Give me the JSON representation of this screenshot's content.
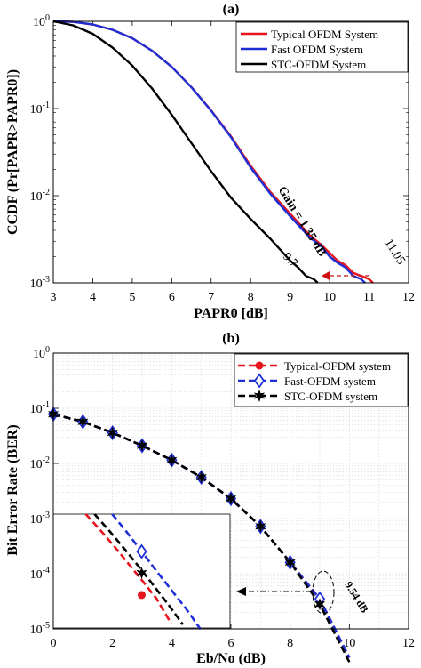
{
  "chart_data": [
    {
      "type": "line",
      "title": "(a)",
      "xlabel": "PAPR0 [dB]",
      "ylabel": "CCDF (Pr[PAPR>PAPR0])",
      "xlim": [
        3,
        12
      ],
      "ylim": [
        0.001,
        1
      ],
      "yscale": "log",
      "grid": false,
      "legend_position": "top-right",
      "x_ticks": [
        "3",
        "4",
        "5",
        "6",
        "7",
        "8",
        "9",
        "10",
        "11",
        "12"
      ],
      "y_ticks": [
        {
          "base": "10",
          "exp": "0"
        },
        {
          "base": "10",
          "exp": "-1"
        },
        {
          "base": "10",
          "exp": "-2"
        },
        {
          "base": "10",
          "exp": "-3"
        }
      ],
      "series": [
        {
          "name": "Typical OFDM System",
          "color": "#e8141c",
          "x": [
            3,
            3.5,
            4,
            4.5,
            5,
            5.5,
            6,
            6.5,
            7,
            7.5,
            8,
            8.5,
            9,
            9.5,
            9.8,
            10,
            10.2,
            10.4,
            10.6,
            10.8,
            11,
            11.1
          ],
          "y": [
            1,
            0.985,
            0.92,
            0.8,
            0.64,
            0.46,
            0.3,
            0.175,
            0.095,
            0.048,
            0.022,
            0.011,
            0.0062,
            0.0035,
            0.0027,
            0.0022,
            0.0018,
            0.0016,
            0.0013,
            0.0012,
            0.0011,
            0.001
          ]
        },
        {
          "name": "Fast OFDM System",
          "color": "#1f2fd6",
          "x": [
            3,
            3.5,
            4,
            4.5,
            5,
            5.5,
            6,
            6.5,
            7,
            7.5,
            8,
            8.5,
            9,
            9.5,
            9.8,
            10,
            10.2,
            10.4,
            10.6,
            10.8,
            10.9
          ],
          "y": [
            1,
            0.985,
            0.92,
            0.8,
            0.64,
            0.46,
            0.3,
            0.175,
            0.094,
            0.047,
            0.021,
            0.0105,
            0.0058,
            0.0033,
            0.0026,
            0.002,
            0.0017,
            0.0015,
            0.0012,
            0.0011,
            0.001
          ]
        },
        {
          "name": "STC-OFDM System",
          "color": "#000000",
          "x": [
            3,
            3.5,
            4,
            4.5,
            5,
            5.5,
            6,
            6.5,
            7,
            7.5,
            8,
            8.5,
            9,
            9.2,
            9.4,
            9.6,
            9.7
          ],
          "y": [
            1,
            0.9,
            0.72,
            0.5,
            0.31,
            0.17,
            0.085,
            0.04,
            0.019,
            0.0095,
            0.0054,
            0.0032,
            0.0018,
            0.0015,
            0.0012,
            0.0011,
            0.001
          ]
        }
      ],
      "annotations": {
        "gain": "Gain = 1.35 dB",
        "label_red": "11.05",
        "label_black": "9.7"
      },
      "colors": {
        "gain": "#cc22cc",
        "label_red": "#e8141c"
      }
    },
    {
      "type": "line",
      "title": "(b)",
      "xlabel": "Eb/No (dB)",
      "ylabel": "Bit Error Rate (BER)",
      "xlim": [
        0,
        12
      ],
      "ylim": [
        1e-05,
        1
      ],
      "yscale": "log",
      "grid": true,
      "legend_position": "top-right",
      "x_ticks": [
        "0",
        "2",
        "4",
        "6",
        "8",
        "10",
        "12"
      ],
      "y_ticks": [
        {
          "base": "10",
          "exp": "0"
        },
        {
          "base": "10",
          "exp": "-1"
        },
        {
          "base": "10",
          "exp": "-2"
        },
        {
          "base": "10",
          "exp": "-3"
        },
        {
          "base": "10",
          "exp": "-4"
        },
        {
          "base": "10",
          "exp": "-5"
        }
      ],
      "x": [
        0,
        1,
        2,
        3,
        4,
        5,
        6,
        7,
        8,
        9,
        10
      ],
      "series": [
        {
          "name": "Typical-OFDM system",
          "color": "#e8141c",
          "marker": "circle",
          "y": [
            0.078,
            0.057,
            0.036,
            0.021,
            0.0115,
            0.0056,
            0.0023,
            0.00072,
            0.00016,
            3.5e-05,
            3e-06
          ]
        },
        {
          "name": "Fast-OFDM system",
          "color": "#1f2fd6",
          "marker": "diamond",
          "y": [
            0.078,
            0.057,
            0.036,
            0.021,
            0.0115,
            0.0056,
            0.0023,
            0.00072,
            0.00016,
            3.5e-05,
            3e-06
          ]
        },
        {
          "name": "STC-OFDM system",
          "color": "#000000",
          "marker": "hexagram",
          "y": [
            0.078,
            0.057,
            0.036,
            0.021,
            0.0115,
            0.0056,
            0.0023,
            0.00072,
            0.00016,
            2.8e-05,
            2.5e-06
          ]
        }
      ],
      "annotations": {
        "label": "9.54 dB"
      },
      "colors": {
        "label": "#cc1111"
      },
      "inset": {
        "series": [
          {
            "color": "#e8141c",
            "marker": "circle"
          },
          {
            "color": "#1f2fd6",
            "marker": "diamond"
          },
          {
            "color": "#000000",
            "marker": "hexagram"
          }
        ]
      }
    }
  ]
}
